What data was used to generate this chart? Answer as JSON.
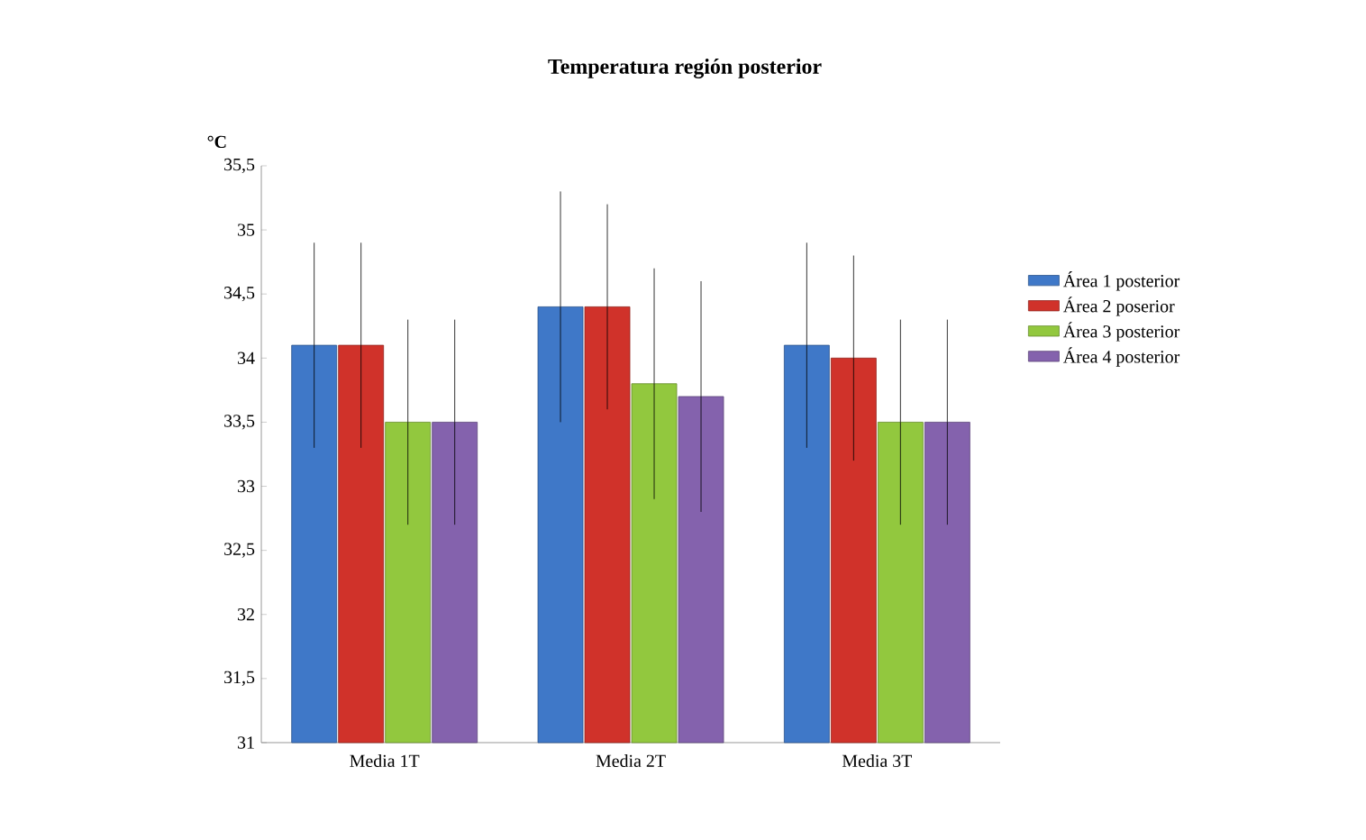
{
  "chart_data": {
    "type": "bar",
    "title": "Temperatura región posterior",
    "ylabel": "°C",
    "categories": [
      "Media 1T",
      "Media 2T",
      "Media 3T"
    ],
    "series": [
      {
        "name": "Área 1 posterior",
        "color": "#3f78c8",
        "values": [
          34.1,
          34.4,
          34.1
        ],
        "errors": [
          0.8,
          0.9,
          0.8
        ]
      },
      {
        "name": "Área 2 poserior",
        "color": "#d0322a",
        "values": [
          34.1,
          34.4,
          34.0
        ],
        "errors": [
          0.8,
          0.8,
          0.8
        ]
      },
      {
        "name": "Área 3 posterior",
        "color": "#92c83e",
        "values": [
          33.5,
          33.8,
          33.5
        ],
        "errors": [
          0.8,
          0.9,
          0.8
        ]
      },
      {
        "name": "Área 4 posterior",
        "color": "#8462ad",
        "values": [
          33.5,
          33.7,
          33.5
        ],
        "errors": [
          0.8,
          0.9,
          0.8
        ]
      }
    ],
    "ylim": [
      31,
      35.5
    ],
    "yticks": [
      31,
      {
        "value": 31.5,
        "label": "31,5"
      },
      32,
      {
        "value": 32.5,
        "label": "32,5"
      },
      33,
      {
        "value": 33.5,
        "label": "33,5"
      },
      34,
      {
        "value": 34.5,
        "label": "34,5"
      },
      35,
      {
        "value": 35.5,
        "label": "35,5"
      }
    ],
    "legend": "right",
    "grid": false
  }
}
